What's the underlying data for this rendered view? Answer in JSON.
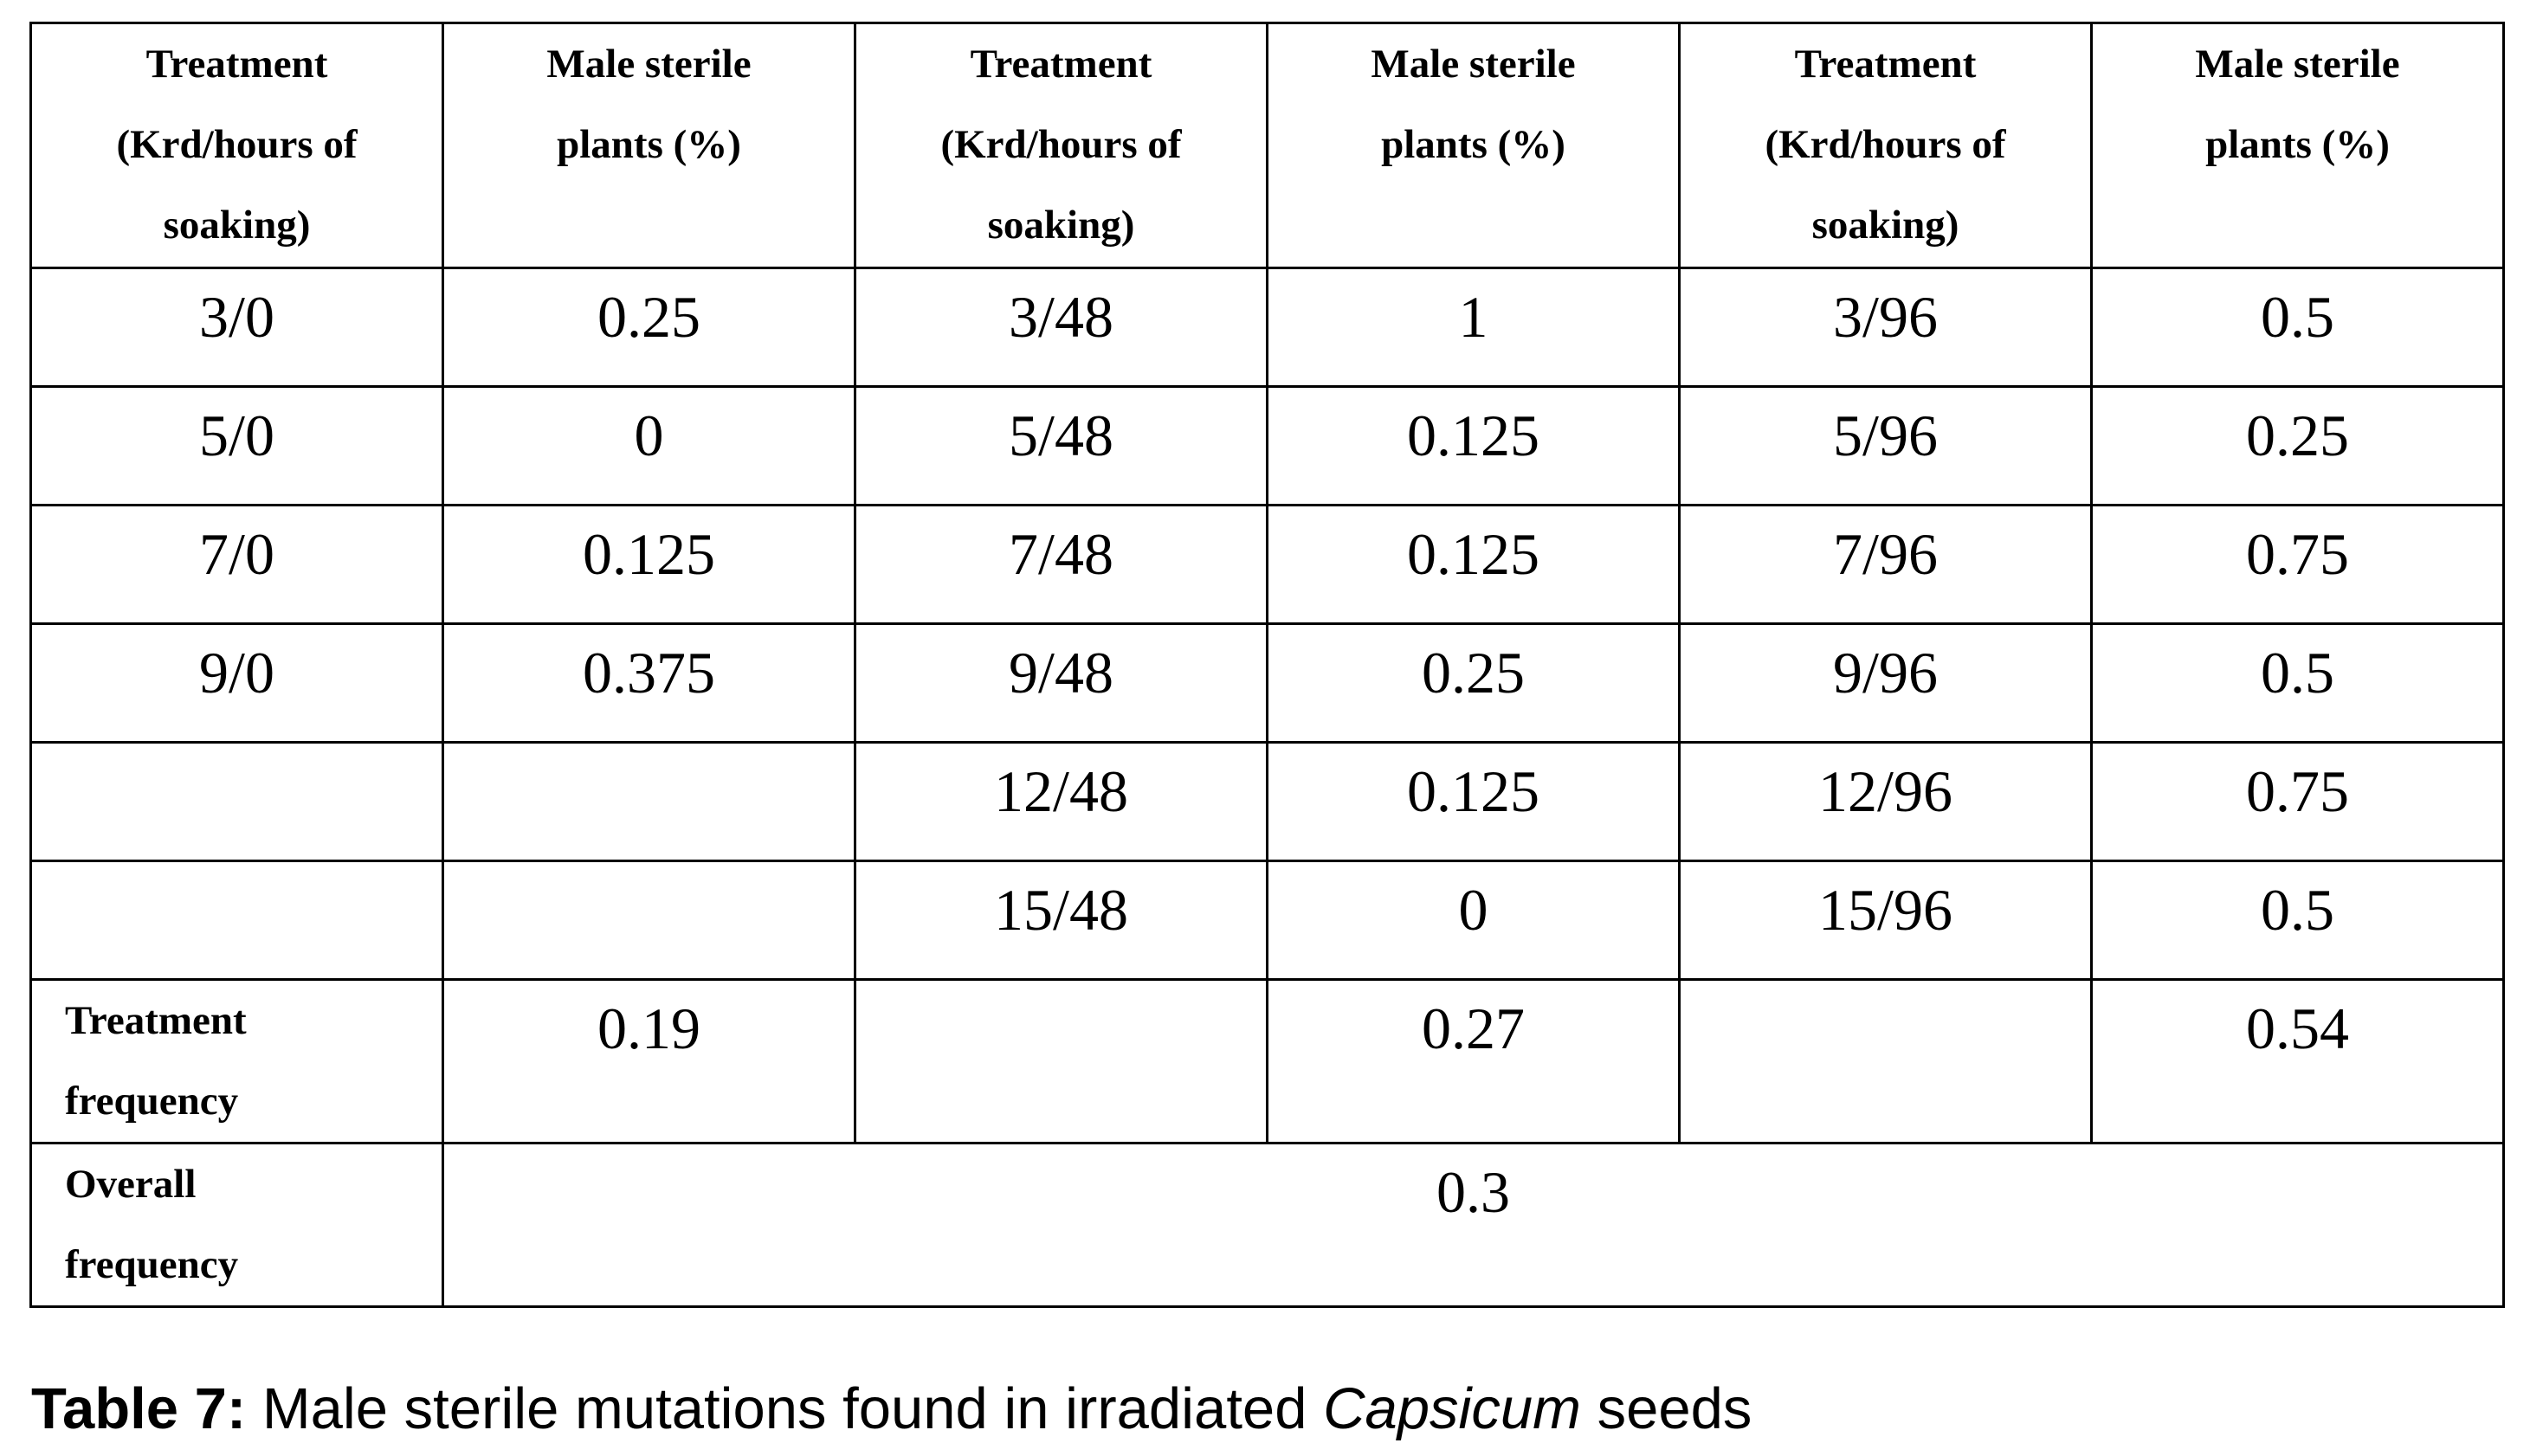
{
  "table": {
    "headers": [
      "Treatment\n(Krd/hours of\nsoaking)",
      "Male sterile\nplants (%)",
      "Treatment\n(Krd/hours of\nsoaking)",
      "Male sterile\nplants (%)",
      "Treatment\n(Krd/hours of\nsoaking)",
      "Male sterile\nplants (%)"
    ],
    "rows": [
      [
        "3/0",
        "0.25",
        "3/48",
        "1",
        "3/96",
        "0.5"
      ],
      [
        "5/0",
        "0",
        "5/48",
        "0.125",
        "5/96",
        "0.25"
      ],
      [
        "7/0",
        "0.125",
        "7/48",
        "0.125",
        "7/96",
        "0.75"
      ],
      [
        "9/0",
        "0.375",
        "9/48",
        "0.25",
        "9/96",
        "0.5"
      ],
      [
        "",
        "",
        "12/48",
        "0.125",
        "12/96",
        "0.75"
      ],
      [
        "",
        "",
        "15/48",
        "0",
        "15/96",
        "0.5"
      ]
    ],
    "treatment_frequency": {
      "label": "Treatment\nfrequency",
      "values": [
        "0.19",
        "",
        "0.27",
        "",
        "0.54"
      ]
    },
    "overall_frequency": {
      "label": "Overall\nfrequency",
      "value": "0.3"
    }
  },
  "caption": {
    "label": "Table 7:",
    "text_before": " Male sterile mutations found in irradiated ",
    "italic": "Capsicum",
    "text_after": " seeds"
  }
}
